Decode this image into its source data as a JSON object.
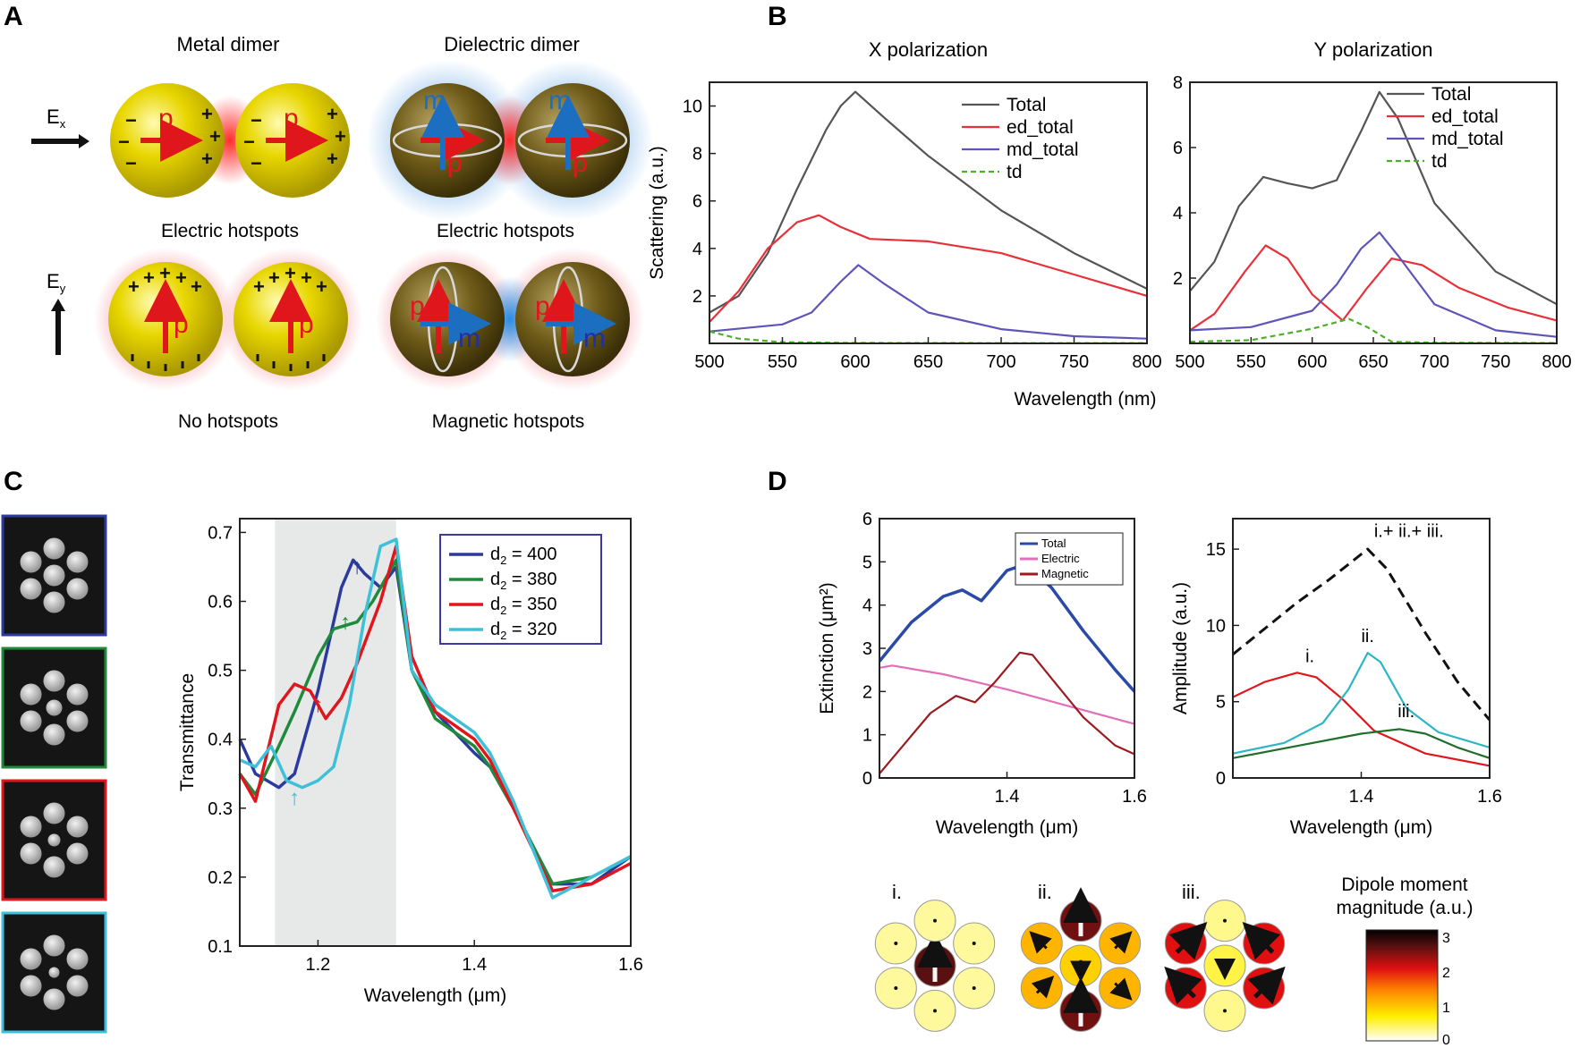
{
  "panels": {
    "A": {
      "label": "A",
      "titles": {
        "metal": "Metal dimer",
        "dielectric": "Dielectric dimer"
      },
      "field_x": "E",
      "field_x_sub": "x",
      "field_y": "E",
      "field_y_sub": "y",
      "captions": {
        "metal_x": "Electric hotspots",
        "dielectric_x": "Electric hotspots",
        "metal_y": "No hotspots",
        "dielectric_y": "Magnetic hotspots"
      },
      "symbols": {
        "p": "p",
        "m": "m",
        "plus": "+",
        "minus": "−"
      }
    },
    "B": {
      "label": "B",
      "shared_xlabel": "Wavelength (nm)"
    },
    "C": {
      "label": "C"
    },
    "D": {
      "label": "D"
    }
  },
  "colors": {
    "total": "#555555",
    "ed": "#e8303a",
    "md": "#5d55b8",
    "td": "#4caf28",
    "d400": "#2b3a9c",
    "d380": "#1f8a3b",
    "d350": "#e0161d",
    "d320": "#3ec0d8",
    "ext_total": "#2b4aa8",
    "ext_electric": "#e06fb8",
    "ext_magnetic": "#9b1b1f",
    "amp_i": "#e0161d",
    "amp_ii": "#2bb6c8",
    "amp_iii": "#1f6e2a",
    "amp_sum": "#111111",
    "metal": "#e6d200",
    "dielectric": "#6e5a18"
  },
  "colorbar": {
    "title_line1": "Dipole moment",
    "title_line2": "magnitude (a.u.)",
    "ticks": [
      "3",
      "2",
      "1",
      "0"
    ]
  },
  "modes": [
    {
      "label": "i.",
      "center": {
        "magnitude": 2.6,
        "angle": 0
      },
      "outer": [
        {
          "magnitude": 0.25,
          "angle": 0
        },
        {
          "magnitude": 0.25,
          "angle": 0
        },
        {
          "magnitude": 0.25,
          "angle": 0
        },
        {
          "magnitude": 0.25,
          "angle": 0
        },
        {
          "magnitude": 0.25,
          "angle": 0
        },
        {
          "magnitude": 0.25,
          "angle": 0
        }
      ]
    },
    {
      "label": "ii.",
      "center": {
        "magnitude": 0.9,
        "angle": 180
      },
      "outer": [
        {
          "magnitude": 2.5,
          "angle": 0
        },
        {
          "magnitude": 1.1,
          "angle": 45
        },
        {
          "magnitude": 1.1,
          "angle": 135
        },
        {
          "magnitude": 2.5,
          "angle": 0
        },
        {
          "magnitude": 1.1,
          "angle": 45
        },
        {
          "magnitude": 1.1,
          "angle": -45
        }
      ]
    },
    {
      "label": "iii.",
      "center": {
        "magnitude": 0.5,
        "angle": 180
      },
      "outer": [
        {
          "magnitude": 0.3,
          "angle": 180
        },
        {
          "magnitude": 2.0,
          "angle": -45
        },
        {
          "magnitude": 2.0,
          "angle": 45
        },
        {
          "magnitude": 0.3,
          "angle": 180
        },
        {
          "magnitude": 2.0,
          "angle": -45
        },
        {
          "magnitude": 2.0,
          "angle": 45
        }
      ]
    }
  ],
  "sem_thumbnails": [
    {
      "border": "#2b3a9c",
      "center_size": "large"
    },
    {
      "border": "#1f8a3b",
      "center_size": "medium"
    },
    {
      "border": "#e0161d",
      "center_size": "small"
    },
    {
      "border": "#3ec0d8",
      "center_size": "tiny"
    }
  ],
  "chart_data": [
    {
      "id": "B-x",
      "type": "line",
      "title": "X polarization",
      "xlabel": "Wavelength (nm)",
      "ylabel": "Scattering (a.u.)",
      "xlim": [
        500,
        800
      ],
      "ylim": [
        0,
        11
      ],
      "xticks": [
        500,
        550,
        600,
        650,
        700,
        750,
        800
      ],
      "yticks": [
        2,
        4,
        6,
        8,
        10
      ],
      "legend": "top-right",
      "series": [
        {
          "name": "Total",
          "color_key": "total",
          "x": [
            500,
            520,
            540,
            560,
            580,
            590,
            600,
            620,
            650,
            700,
            750,
            800
          ],
          "y": [
            1.3,
            2.0,
            3.8,
            6.5,
            9.0,
            10.0,
            10.6,
            9.5,
            7.9,
            5.6,
            3.8,
            2.3
          ]
        },
        {
          "name": "ed_total",
          "color_key": "ed",
          "x": [
            500,
            520,
            540,
            560,
            575,
            590,
            610,
            650,
            700,
            750,
            800
          ],
          "y": [
            0.9,
            2.2,
            4.0,
            5.1,
            5.4,
            4.9,
            4.4,
            4.3,
            3.8,
            2.9,
            2.0
          ]
        },
        {
          "name": "md_total",
          "color_key": "md",
          "x": [
            500,
            550,
            570,
            590,
            602,
            620,
            650,
            700,
            750,
            800
          ],
          "y": [
            0.5,
            0.8,
            1.3,
            2.6,
            3.3,
            2.5,
            1.3,
            0.6,
            0.3,
            0.2
          ]
        },
        {
          "name": "td",
          "color_key": "td",
          "dashed": true,
          "x": [
            500,
            520,
            550,
            600,
            700,
            800
          ],
          "y": [
            0.5,
            0.2,
            0.05,
            0.02,
            0.01,
            0.01
          ]
        }
      ]
    },
    {
      "id": "B-y",
      "type": "line",
      "title": "Y polarization",
      "xlabel": "Wavelength (nm)",
      "ylabel": "",
      "xlim": [
        500,
        800
      ],
      "ylim": [
        0,
        8
      ],
      "xticks": [
        500,
        550,
        600,
        650,
        700,
        750,
        800
      ],
      "yticks": [
        2,
        4,
        6,
        8
      ],
      "legend": "top-right",
      "series": [
        {
          "name": "Total",
          "color_key": "total",
          "x": [
            500,
            520,
            540,
            560,
            580,
            600,
            620,
            640,
            655,
            670,
            700,
            750,
            800
          ],
          "y": [
            1.6,
            2.5,
            4.2,
            5.1,
            4.9,
            4.75,
            5.0,
            6.5,
            7.7,
            6.9,
            4.3,
            2.2,
            1.2
          ]
        },
        {
          "name": "ed_total",
          "color_key": "ed",
          "x": [
            500,
            520,
            545,
            562,
            580,
            600,
            625,
            645,
            665,
            690,
            720,
            760,
            800
          ],
          "y": [
            0.4,
            0.9,
            2.2,
            3.0,
            2.6,
            1.5,
            0.7,
            1.7,
            2.6,
            2.4,
            1.7,
            1.1,
            0.7
          ]
        },
        {
          "name": "md_total",
          "color_key": "md",
          "x": [
            500,
            550,
            600,
            620,
            640,
            655,
            670,
            700,
            750,
            800
          ],
          "y": [
            0.4,
            0.5,
            1.0,
            1.8,
            2.9,
            3.4,
            2.7,
            1.2,
            0.4,
            0.2
          ]
        },
        {
          "name": "td",
          "color_key": "td",
          "dashed": true,
          "x": [
            500,
            550,
            600,
            630,
            645,
            665,
            700,
            800
          ],
          "y": [
            0.05,
            0.1,
            0.45,
            0.75,
            0.5,
            0.05,
            0.02,
            0.01
          ]
        }
      ]
    },
    {
      "id": "C",
      "type": "line",
      "title": "",
      "xlabel": "Wavelength (μm)",
      "ylabel": "Transmittance",
      "xlim": [
        1.1,
        1.6
      ],
      "ylim": [
        0.1,
        0.72
      ],
      "xticks": [
        1.2,
        1.4,
        1.6
      ],
      "yticks": [
        0.1,
        0.2,
        0.3,
        0.4,
        0.5,
        0.6,
        0.7
      ],
      "shaded_region": [
        1.145,
        1.3
      ],
      "legend": "top-right",
      "series": [
        {
          "name": "d2 = 400",
          "legend_prefix": "d",
          "legend_sub": "2",
          "legend_value": " = 400",
          "color_key": "d400",
          "x": [
            1.1,
            1.12,
            1.15,
            1.17,
            1.2,
            1.23,
            1.245,
            1.26,
            1.28,
            1.3,
            1.32,
            1.35,
            1.4,
            1.42,
            1.45,
            1.5,
            1.55,
            1.6
          ],
          "y": [
            0.4,
            0.35,
            0.33,
            0.35,
            0.47,
            0.62,
            0.66,
            0.64,
            0.62,
            0.65,
            0.5,
            0.44,
            0.38,
            0.36,
            0.3,
            0.19,
            0.19,
            0.23
          ]
        },
        {
          "name": "d2 = 380",
          "legend_prefix": "d",
          "legend_sub": "2",
          "legend_value": " = 380",
          "color_key": "d380",
          "x": [
            1.1,
            1.12,
            1.15,
            1.17,
            1.2,
            1.22,
            1.25,
            1.27,
            1.3,
            1.32,
            1.35,
            1.4,
            1.42,
            1.45,
            1.5,
            1.55,
            1.6
          ],
          "y": [
            0.35,
            0.32,
            0.39,
            0.44,
            0.52,
            0.56,
            0.57,
            0.6,
            0.66,
            0.5,
            0.43,
            0.39,
            0.36,
            0.3,
            0.19,
            0.2,
            0.23
          ]
        },
        {
          "name": "d2 = 350",
          "legend_prefix": "d",
          "legend_sub": "2",
          "legend_value": " = 350",
          "color_key": "d350",
          "x": [
            1.1,
            1.12,
            1.15,
            1.17,
            1.19,
            1.21,
            1.23,
            1.25,
            1.28,
            1.3,
            1.32,
            1.35,
            1.4,
            1.42,
            1.45,
            1.5,
            1.55,
            1.6
          ],
          "y": [
            0.35,
            0.31,
            0.45,
            0.48,
            0.47,
            0.43,
            0.46,
            0.51,
            0.6,
            0.68,
            0.52,
            0.44,
            0.4,
            0.37,
            0.3,
            0.18,
            0.19,
            0.22
          ]
        },
        {
          "name": "d2 = 320",
          "legend_prefix": "d",
          "legend_sub": "2",
          "legend_value": " = 320",
          "color_key": "d320",
          "x": [
            1.1,
            1.12,
            1.14,
            1.16,
            1.18,
            1.2,
            1.22,
            1.24,
            1.26,
            1.28,
            1.3,
            1.32,
            1.35,
            1.4,
            1.42,
            1.45,
            1.5,
            1.55,
            1.6
          ],
          "y": [
            0.37,
            0.36,
            0.39,
            0.34,
            0.33,
            0.34,
            0.36,
            0.45,
            0.58,
            0.68,
            0.69,
            0.5,
            0.45,
            0.41,
            0.38,
            0.31,
            0.17,
            0.2,
            0.23
          ]
        }
      ],
      "annotations": [
        {
          "text": "↑",
          "x": 1.25,
          "y": 0.64,
          "color_key": "d400"
        },
        {
          "text": "↑",
          "x": 1.235,
          "y": 0.56,
          "color_key": "d380"
        },
        {
          "text": "↑",
          "x": 1.2,
          "y": 0.44,
          "color_key": "d350"
        },
        {
          "text": "↑",
          "x": 1.17,
          "y": 0.305,
          "color_key": "d320"
        }
      ]
    },
    {
      "id": "D-ext",
      "type": "line",
      "title": "",
      "xlabel": "Wavelength (μm)",
      "ylabel": "Extinction (μm²)",
      "xlim": [
        1.2,
        1.6
      ],
      "ylim": [
        0,
        6
      ],
      "xticks": [
        1.4,
        1.6
      ],
      "yticks": [
        0,
        1,
        2,
        3,
        4,
        5,
        6
      ],
      "legend": "top-right",
      "series": [
        {
          "name": "Total",
          "color_key": "ext_total",
          "x": [
            1.2,
            1.25,
            1.3,
            1.33,
            1.36,
            1.4,
            1.43,
            1.47,
            1.52,
            1.57,
            1.6
          ],
          "y": [
            2.7,
            3.6,
            4.2,
            4.35,
            4.1,
            4.8,
            4.95,
            4.4,
            3.4,
            2.5,
            2.0
          ]
        },
        {
          "name": "Electric",
          "color_key": "ext_electric",
          "x": [
            1.2,
            1.22,
            1.3,
            1.4,
            1.5,
            1.6
          ],
          "y": [
            2.55,
            2.6,
            2.4,
            2.05,
            1.65,
            1.25
          ]
        },
        {
          "name": "Magnetic",
          "color_key": "ext_magnetic",
          "x": [
            1.2,
            1.24,
            1.28,
            1.32,
            1.35,
            1.38,
            1.42,
            1.44,
            1.47,
            1.52,
            1.57,
            1.6
          ],
          "y": [
            0.1,
            0.8,
            1.5,
            1.9,
            1.75,
            2.2,
            2.9,
            2.85,
            2.3,
            1.4,
            0.75,
            0.55
          ]
        }
      ]
    },
    {
      "id": "D-amp",
      "type": "line",
      "title": "",
      "xlabel": "Wavelength (μm)",
      "ylabel": "Amplitude (a.u.)",
      "xlim": [
        1.2,
        1.6
      ],
      "ylim": [
        0,
        17
      ],
      "xticks": [
        1.4,
        1.6
      ],
      "yticks": [
        0,
        5,
        10,
        15
      ],
      "series": [
        {
          "name": "i.",
          "color_key": "amp_i",
          "x": [
            1.2,
            1.25,
            1.3,
            1.33,
            1.37,
            1.42,
            1.5,
            1.6
          ],
          "y": [
            5.3,
            6.3,
            6.9,
            6.6,
            5.2,
            3.1,
            1.6,
            0.8
          ]
        },
        {
          "name": "ii.",
          "color_key": "amp_ii",
          "x": [
            1.2,
            1.28,
            1.34,
            1.38,
            1.41,
            1.43,
            1.47,
            1.52,
            1.6
          ],
          "y": [
            1.6,
            2.3,
            3.6,
            5.8,
            8.2,
            7.6,
            4.6,
            3.0,
            2.0
          ]
        },
        {
          "name": "iii.",
          "color_key": "amp_iii",
          "x": [
            1.2,
            1.3,
            1.4,
            1.46,
            1.5,
            1.55,
            1.6
          ],
          "y": [
            1.3,
            2.1,
            2.9,
            3.2,
            2.9,
            2.0,
            1.3
          ]
        },
        {
          "name": "i.+ ii.+ iii.",
          "color_key": "amp_sum",
          "dashed": true,
          "x": [
            1.2,
            1.3,
            1.35,
            1.41,
            1.44,
            1.5,
            1.55,
            1.6
          ],
          "y": [
            8.1,
            11.5,
            13.0,
            15.0,
            13.7,
            9.5,
            6.3,
            3.8
          ]
        }
      ],
      "annotations": [
        {
          "text": "i.+ ii.+ iii.",
          "x": 1.42,
          "y": 15.8
        },
        {
          "text": "i.",
          "x": 1.32,
          "y": 7.6
        },
        {
          "text": "ii.",
          "x": 1.41,
          "y": 8.9
        },
        {
          "text": "iii.",
          "x": 1.47,
          "y": 4.0
        }
      ]
    }
  ]
}
